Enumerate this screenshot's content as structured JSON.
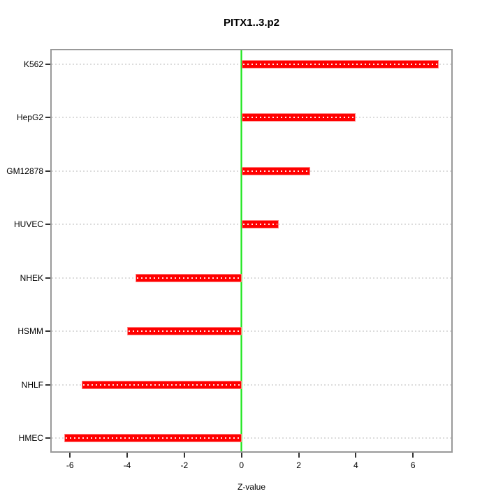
{
  "chart_data": {
    "type": "bar",
    "orientation": "horizontal",
    "title": "PITX1..3.p2",
    "xlabel": "Z-value",
    "ylabel": "",
    "categories": [
      "K562",
      "HepG2",
      "GM12878",
      "HUVEC",
      "NHEK",
      "HSMM",
      "NHLF",
      "HMEC"
    ],
    "values": [
      6.9,
      4.0,
      2.4,
      1.3,
      -3.7,
      -4.0,
      -5.6,
      -6.2
    ],
    "xlim": [
      -6.7,
      7.4
    ],
    "xticks": [
      -6,
      -4,
      -2,
      0,
      2,
      4,
      6
    ],
    "xtick_labels": [
      "-6",
      "-4",
      "-2",
      "0",
      "2",
      "4",
      "6"
    ],
    "reference_line_x": 0,
    "grid": "horizontal-dotted",
    "legend": "none",
    "colors": {
      "bar_fill": "#ff0000",
      "bar_edge": "#ff8888",
      "bar_center_dots": "#ffffff",
      "zero_line": "#00dd00",
      "gridline": "#dcdcdc",
      "plot_border": "#999999",
      "tick": "#333333",
      "text": "#000000",
      "background": "#ffffff"
    }
  }
}
